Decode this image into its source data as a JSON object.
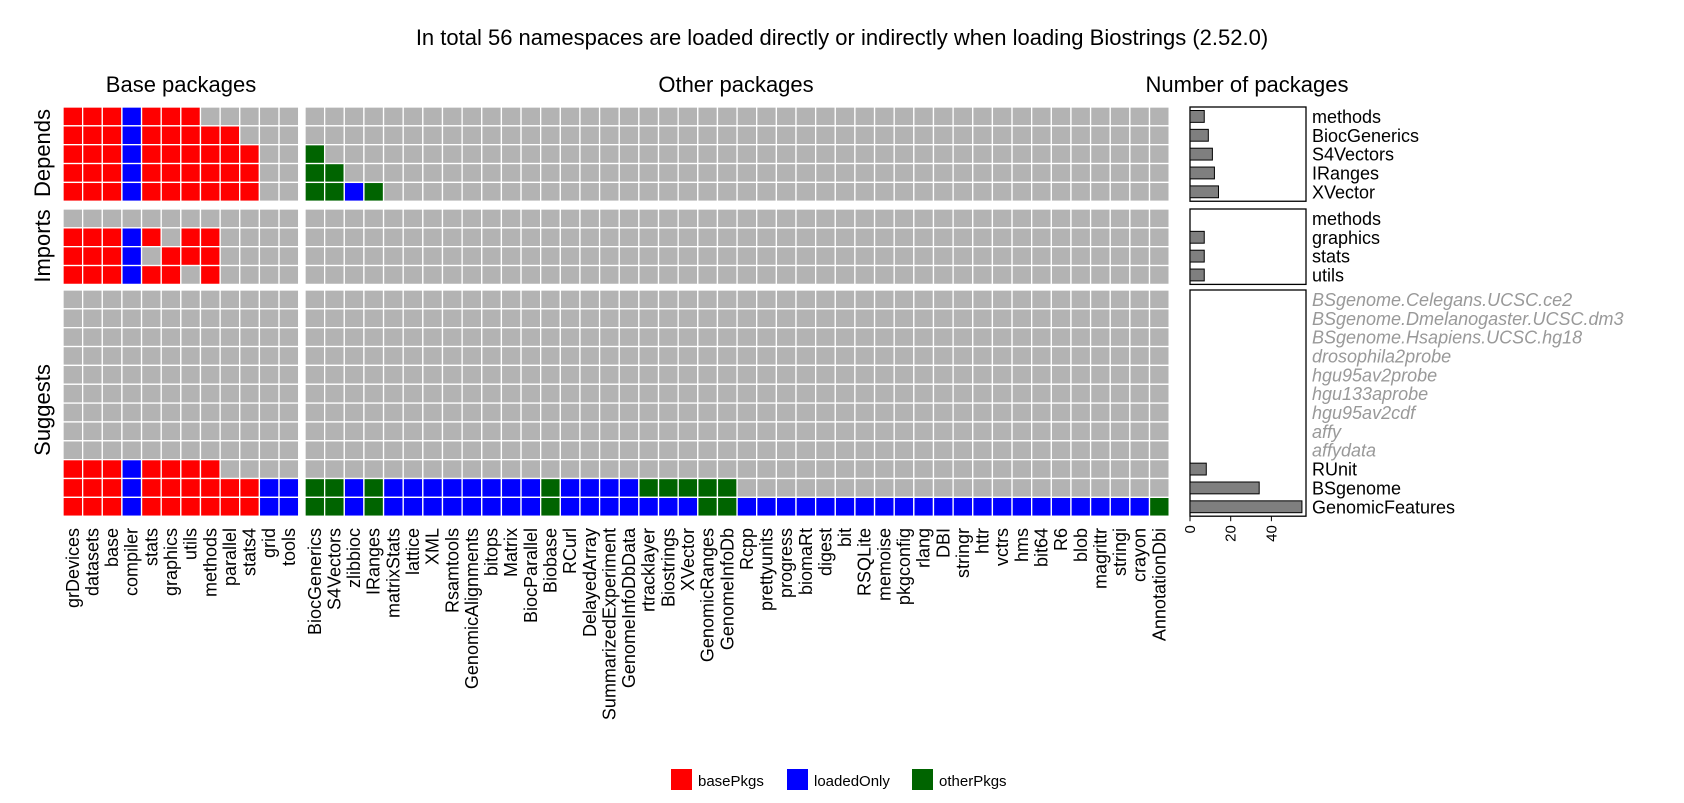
{
  "chart_data": {
    "type": "heatmap",
    "title": "In total 56 namespaces are loaded directly or indirectly when loading Biostrings (2.52.0)",
    "panel_titles": {
      "base": "Base packages",
      "other": "Other packages",
      "count": "Number of packages"
    },
    "group_labels": {
      "depends": "Depends",
      "imports": "Imports",
      "suggests": "Suggests"
    },
    "columns_base": [
      "grDevices",
      "datasets",
      "base",
      "compiler",
      "stats",
      "graphics",
      "utils",
      "methods",
      "parallel",
      "stats4",
      "grid",
      "tools"
    ],
    "columns_other": [
      "BiocGenerics",
      "S4Vectors",
      "zlibbioc",
      "IRanges",
      "matrixStats",
      "lattice",
      "XML",
      "Rsamtools",
      "GenomicAlignments",
      "bitops",
      "Matrix",
      "BiocParallel",
      "Biobase",
      "RCurl",
      "DelayedArray",
      "SummarizedExperiment",
      "GenomeInfoDbData",
      "rtracklayer",
      "Biostrings",
      "XVector",
      "GenomicRanges",
      "GenomeInfoDb",
      "Rcpp",
      "prettyunits",
      "progress",
      "biomaRt",
      "digest",
      "bit",
      "RSQLite",
      "memoise",
      "pkgconfig",
      "rlang",
      "DBI",
      "stringr",
      "httr",
      "vctrs",
      "hms",
      "bit64",
      "R6",
      "blob",
      "magrittr",
      "stringi",
      "crayon",
      "AnnotationDbi"
    ],
    "rows": [
      {
        "group": "depends",
        "name": "methods",
        "installed": true,
        "count": 7,
        "base": "RRRBRRRN"
      },
      {
        "group": "depends",
        "name": "BiocGenerics",
        "installed": true,
        "count": 9,
        "base": "RRRBRRRRRN"
      },
      {
        "group": "depends",
        "name": "S4Vectors",
        "installed": true,
        "count": 11,
        "base": "RRRBRRRRRRN",
        "other": "G"
      },
      {
        "group": "depends",
        "name": "IRanges",
        "installed": true,
        "count": 12,
        "base": "RRRBRRRRRRN",
        "other": "GG"
      },
      {
        "group": "depends",
        "name": "XVector",
        "installed": true,
        "count": 14,
        "base": "RRRBRRRRRRN",
        "other": "GGBG"
      },
      {
        "group": "imports",
        "name": "methods",
        "installed": true,
        "count": 0,
        "base": "N"
      },
      {
        "group": "imports",
        "name": "graphics",
        "installed": true,
        "count": 7,
        "base": "RRRBRNRRN"
      },
      {
        "group": "imports",
        "name": "stats",
        "installed": true,
        "count": 7,
        "base": "RRRBNRRRN"
      },
      {
        "group": "imports",
        "name": "utils",
        "installed": true,
        "count": 7,
        "base": "RRRBRRNRN"
      },
      {
        "group": "suggests",
        "name": "BSgenome.Celegans.UCSC.ce2",
        "installed": false,
        "count": 0
      },
      {
        "group": "suggests",
        "name": "BSgenome.Dmelanogaster.UCSC.dm3",
        "installed": false,
        "count": 0
      },
      {
        "group": "suggests",
        "name": "BSgenome.Hsapiens.UCSC.hg18",
        "installed": false,
        "count": 0
      },
      {
        "group": "suggests",
        "name": "drosophila2probe",
        "installed": false,
        "count": 0
      },
      {
        "group": "suggests",
        "name": "hgu95av2probe",
        "installed": false,
        "count": 0
      },
      {
        "group": "suggests",
        "name": "hgu133aprobe",
        "installed": false,
        "count": 0
      },
      {
        "group": "suggests",
        "name": "hgu95av2cdf",
        "installed": false,
        "count": 0
      },
      {
        "group": "suggests",
        "name": "affy",
        "installed": false,
        "count": 0
      },
      {
        "group": "suggests",
        "name": "affydata",
        "installed": false,
        "count": 0
      },
      {
        "group": "suggests",
        "name": "RUnit",
        "installed": true,
        "count": 8,
        "base": "RRRBRRRRN"
      },
      {
        "group": "suggests",
        "name": "BSgenome",
        "installed": true,
        "count": 34,
        "base": "RRRBRRRRRRBB",
        "other": "GGBGBBBBBBBBGBBBBGGGGG"
      },
      {
        "group": "suggests",
        "name": "GenomicFeatures",
        "installed": true,
        "count": 55,
        "base": "RRRBRRRRRRBB",
        "other": "GGBGBBBBBBBBGBBBBBBBGGBBBBBBBBBBBBBBBBBBBBBG"
      }
    ],
    "cell_codes": {
      "R": "basePkgs",
      "B": "loadedOnly",
      "G": "otherPkgs",
      "N": "not loaded"
    },
    "count_axis": {
      "ticks": [
        0,
        20,
        40
      ],
      "xlim": [
        0,
        57
      ]
    },
    "legend": {
      "position": "bottom",
      "entries": [
        {
          "name": "basePkgs",
          "color": "#ff0000"
        },
        {
          "name": "loadedOnly",
          "color": "#0000ff"
        },
        {
          "name": "otherPkgs",
          "color": "#006400"
        }
      ]
    },
    "colors": {
      "empty": "#b3b3b3",
      "bar": "#7f7f7f",
      "uninstalled_label": "#999999"
    }
  }
}
